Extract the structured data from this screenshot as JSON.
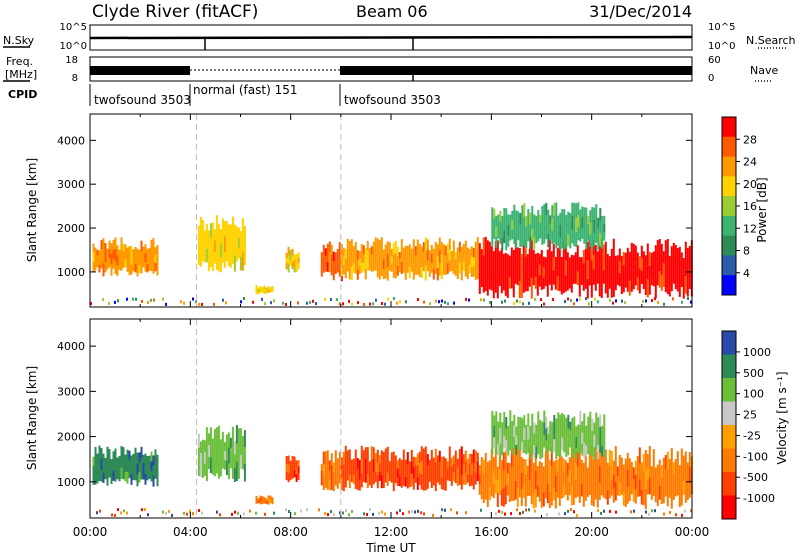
{
  "header": {
    "title": "Clyde River (fitACF)",
    "beam": "Beam 06",
    "date": "31/Dec/2014"
  },
  "strips": {
    "nsky_label": "N.Sky",
    "nsearch_label": "N.Search",
    "nsky_ticks": [
      "10^5",
      "10^0"
    ],
    "nsearch_ticks": [
      "10^5",
      "10^0"
    ],
    "freq_label_top": "Freq.",
    "freq_label_bottom": "[MHz]",
    "freq_ticks": [
      "18",
      "8"
    ],
    "nave_label": "Nave",
    "nave_ticks": [
      "60",
      "0"
    ],
    "cpid_label": "CPID",
    "cpid_segments": [
      {
        "label": "twofsound 3503",
        "start": 0.0,
        "end": 4.25
      },
      {
        "label": "normal (fast) 151",
        "start": 4.25,
        "end": 10.0
      },
      {
        "label": "twofsound 3503",
        "start": 10.0,
        "end": 24.0
      }
    ]
  },
  "chart_data": [
    {
      "type": "heatmap",
      "title": "Power",
      "xlabel": "Time UT",
      "ylabel": "Slant Range [km]",
      "x_ticks": [
        "00:00",
        "04:00",
        "08:00",
        "12:00",
        "16:00",
        "20:00",
        "00:00"
      ],
      "xlim": [
        0,
        24
      ],
      "ylim": [
        200,
        4600
      ],
      "y_ticks": [
        1000,
        2000,
        3000,
        4000
      ],
      "colorbar": {
        "label": "Power [dB]",
        "ticks": [
          "28",
          "24",
          "20",
          "16",
          "12",
          "8",
          "4"
        ],
        "colors": [
          "#ff0000",
          "#ff5a00",
          "#ff9900",
          "#ffd200",
          "#9acd32",
          "#3cb371",
          "#2e8b57",
          "#2a5caa",
          "#0000ff"
        ]
      },
      "echo_regions": [
        {
          "t0": 0.1,
          "t1": 2.7,
          "r0": 900,
          "r1": 1800,
          "level": 20
        },
        {
          "t0": 4.3,
          "t1": 6.2,
          "r0": 1000,
          "r1": 2300,
          "level": 18
        },
        {
          "t0": 6.6,
          "t1": 7.3,
          "r0": 500,
          "r1": 700,
          "level": 16
        },
        {
          "t0": 7.8,
          "t1": 8.3,
          "r0": 1000,
          "r1": 1600,
          "level": 16
        },
        {
          "t0": 9.2,
          "t1": 10.0,
          "r0": 800,
          "r1": 1700,
          "level": 24
        },
        {
          "t0": 10.0,
          "t1": 15.5,
          "r0": 800,
          "r1": 1800,
          "level": 22
        },
        {
          "t0": 15.5,
          "t1": 24.0,
          "r0": 400,
          "r1": 1800,
          "level": 28
        },
        {
          "t0": 16.0,
          "t1": 20.5,
          "r0": 1500,
          "r1": 2600,
          "level": 10
        }
      ]
    },
    {
      "type": "heatmap",
      "title": "Velocity",
      "xlabel": "Time UT",
      "ylabel": "Slant Range [km]",
      "x_ticks": [
        "00:00",
        "04:00",
        "08:00",
        "12:00",
        "16:00",
        "20:00",
        "00:00"
      ],
      "xlim": [
        0,
        24
      ],
      "ylim": [
        200,
        4600
      ],
      "y_ticks": [
        1000,
        2000,
        3000,
        4000
      ],
      "colorbar": {
        "label": "Velocity [m s⁻¹]",
        "ticks": [
          "1000",
          "500",
          "100",
          "25",
          "-25",
          "-100",
          "-500",
          "-1000"
        ],
        "colors": [
          "#2a4aa8",
          "#2e8b57",
          "#6bbf3a",
          "#c8c8c8",
          "#ffa000",
          "#ff7a00",
          "#ff4000",
          "#ff0000"
        ]
      },
      "echo_regions": [
        {
          "t0": 0.1,
          "t1": 2.7,
          "r0": 900,
          "r1": 1800,
          "level": 500
        },
        {
          "t0": 4.3,
          "t1": 6.2,
          "r0": 1000,
          "r1": 2300,
          "level": 100
        },
        {
          "t0": 6.6,
          "t1": 7.3,
          "r0": 500,
          "r1": 700,
          "level": -100
        },
        {
          "t0": 7.8,
          "t1": 8.3,
          "r0": 1000,
          "r1": 1600,
          "level": -500
        },
        {
          "t0": 9.2,
          "t1": 10.0,
          "r0": 800,
          "r1": 1700,
          "level": -100
        },
        {
          "t0": 10.0,
          "t1": 15.5,
          "r0": 800,
          "r1": 1800,
          "level": -500
        },
        {
          "t0": 15.5,
          "t1": 24.0,
          "r0": 400,
          "r1": 1800,
          "level": -100
        },
        {
          "t0": 16.0,
          "t1": 20.5,
          "r0": 1500,
          "r1": 2600,
          "level": 100
        }
      ]
    }
  ]
}
